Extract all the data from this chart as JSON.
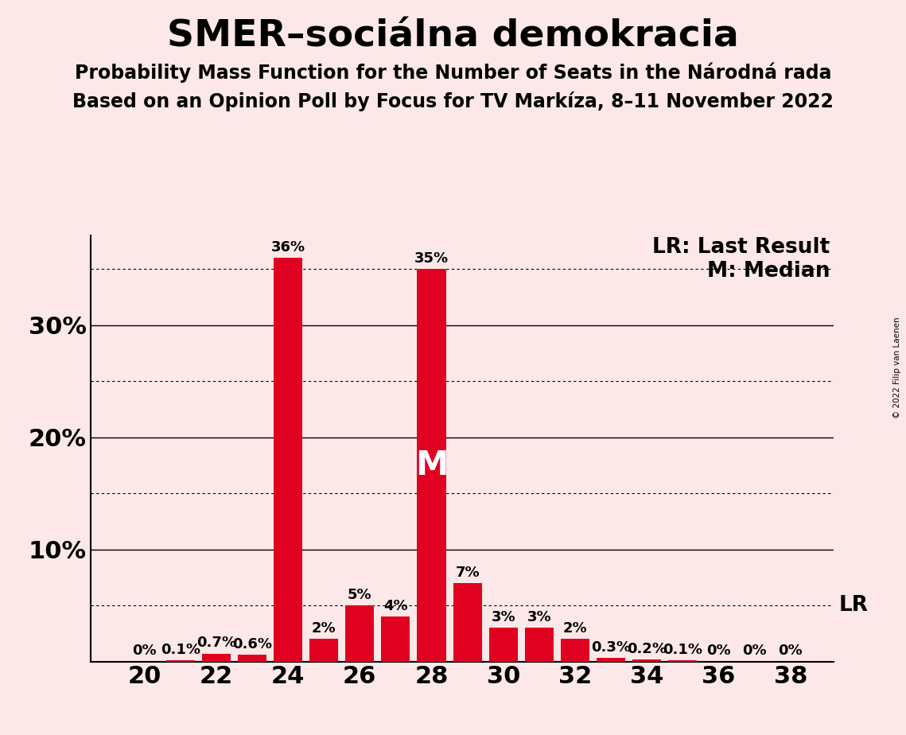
{
  "title": "SMER–sociálna demokracia",
  "subtitle1": "Probability Mass Function for the Number of Seats in the Národná rada",
  "subtitle2": "Based on an Opinion Poll by Focus for TV Markíza, 8–11 November 2022",
  "copyright": "© 2022 Filip van Laenen",
  "seats": [
    20,
    21,
    22,
    23,
    24,
    25,
    26,
    27,
    28,
    29,
    30,
    31,
    32,
    33,
    34,
    35,
    36,
    37,
    38
  ],
  "probabilities": [
    0.0,
    0.1,
    0.7,
    0.6,
    36.0,
    2.0,
    5.0,
    4.0,
    35.0,
    7.0,
    3.0,
    3.0,
    2.0,
    0.3,
    0.2,
    0.1,
    0.0,
    0.0,
    0.0
  ],
  "bar_color": "#e00020",
  "background_color": "#fce8e8",
  "median_seat": 28,
  "lr_value": 5.0,
  "ylim": [
    0,
    38
  ],
  "yticks_labeled": [
    10,
    20,
    30
  ],
  "ytick_labeled_strs": [
    "10%",
    "20%",
    "30%"
  ],
  "solid_gridlines": [
    10,
    20,
    30
  ],
  "dotted_gridlines": [
    5,
    15,
    25,
    35
  ],
  "lr_dotted_line": 5.0,
  "title_fontsize": 34,
  "subtitle_fontsize": 17,
  "axis_tick_fontsize": 22,
  "bar_label_fontsize": 13,
  "legend_fontsize": 19,
  "median_label_fontsize": 30,
  "lr_label_fontsize": 19
}
